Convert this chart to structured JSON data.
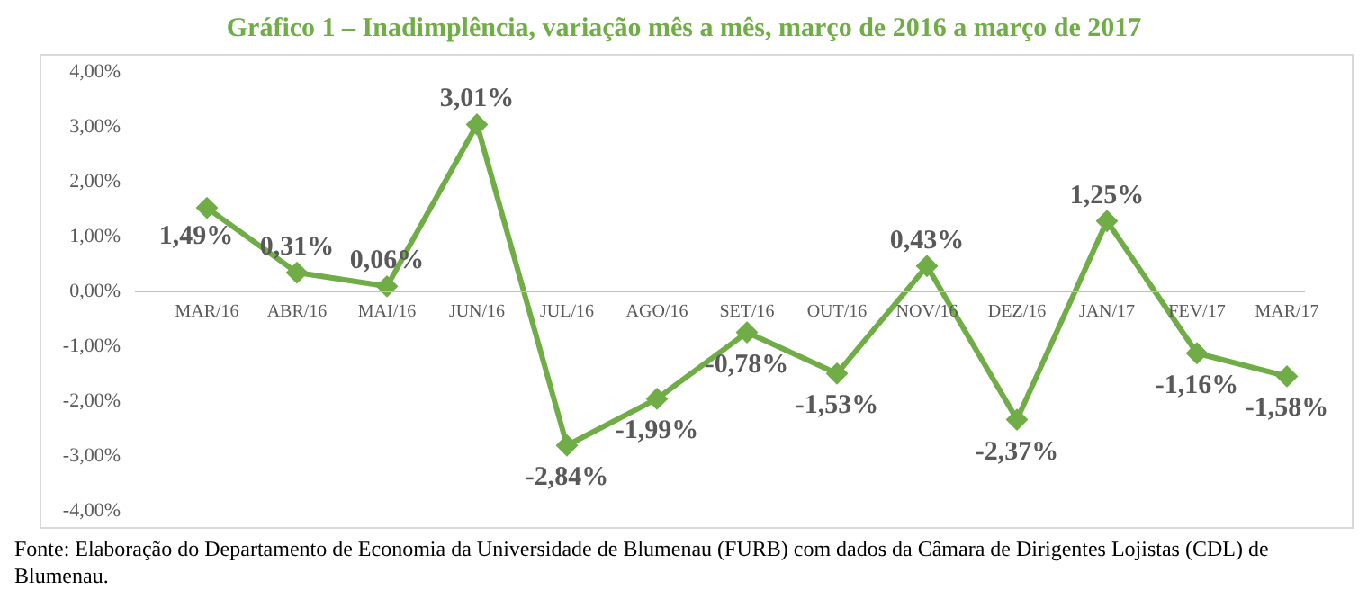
{
  "chart_data": {
    "type": "line",
    "title": "Gráfico 1 – Inadimplência, variação mês a mês, março de 2016 a março de 2017",
    "categories": [
      "MAR/16",
      "ABR/16",
      "MAI/16",
      "JUN/16",
      "JUL/16",
      "AGO/16",
      "SET/16",
      "OUT/16",
      "NOV/16",
      "DEZ/16",
      "JAN/17",
      "FEV/17",
      "MAR/17"
    ],
    "series": [
      {
        "color": "#70ad47",
        "values": [
          1.49,
          0.31,
          0.06,
          3.01,
          -2.84,
          -1.99,
          -0.78,
          -1.53,
          0.43,
          -2.37,
          1.25,
          -1.16,
          -1.58
        ],
        "value_labels": [
          "1,49%",
          "0,31%",
          "0,06%",
          "3,01%",
          "-2,84%",
          "-1,99%",
          "-0,78%",
          "-1,53%",
          "0,43%",
          "-2,37%",
          "1,25%",
          "-1,16%",
          "-1,58%"
        ]
      }
    ],
    "ylim": [
      -4,
      4
    ],
    "yticks": [
      {
        "value": -4,
        "label": "-4,00%"
      },
      {
        "value": -3,
        "label": "-3,00%"
      },
      {
        "value": -2,
        "label": "-2,00%"
      },
      {
        "value": -1,
        "label": "-1,00%"
      },
      {
        "value": 0,
        "label": "0,00%"
      },
      {
        "value": 1,
        "label": "1,00%"
      },
      {
        "value": 2,
        "label": "2,00%"
      },
      {
        "value": 3,
        "label": "3,00%"
      },
      {
        "value": 4,
        "label": "4,00%"
      }
    ],
    "grid": false,
    "legend": false,
    "marker": "diamond",
    "line_style": "solid",
    "annotations": [
      "Fonte: Elaboração do Departamento de Economia da Universidade de Blumenau (FURB) com dados da Câmara de Dirigentes Lojistas (CDL) de Blumenau."
    ]
  }
}
